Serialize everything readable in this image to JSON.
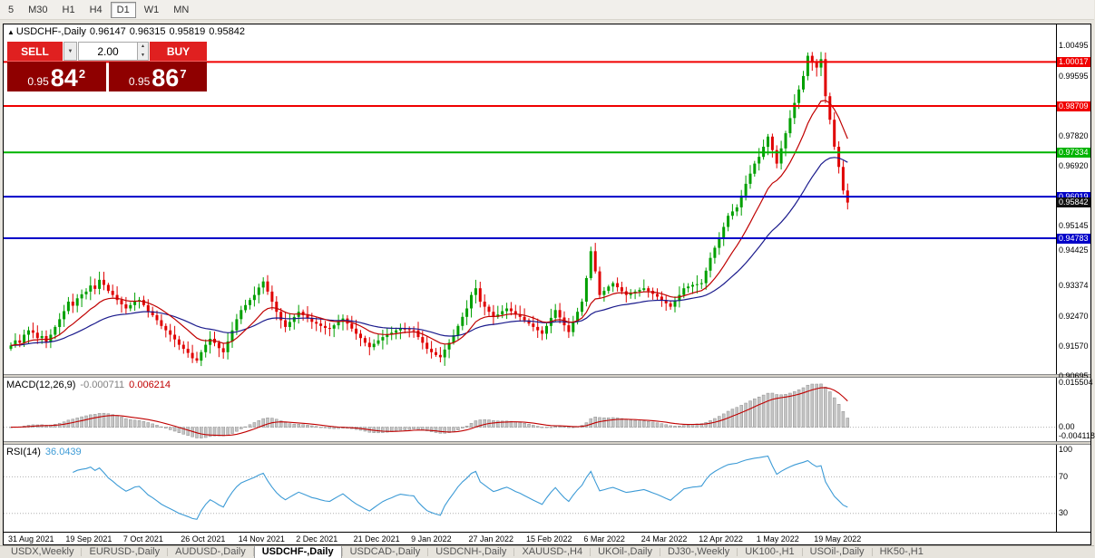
{
  "colors": {
    "candle_up": "#00a000",
    "candle_down": "#e00000",
    "ma_fast": "#c00000",
    "ma_slow": "#1a1a8c",
    "macd_hist_fill": "#c4c4c4",
    "macd_hist_edge": "#909090",
    "macd_signal": "#c00000",
    "rsi_line": "#3d9bd6",
    "panel_dotted": "#b0b0b0"
  },
  "toolbar": {
    "timeframes": [
      "5",
      "M30",
      "H1",
      "H4",
      "D1",
      "W1",
      "MN"
    ],
    "active": "D1"
  },
  "chart": {
    "title": {
      "arrow": "▲",
      "symbol": "USDCHF-,Daily",
      "open": "0.96147",
      "high": "0.96315",
      "low": "0.95819",
      "close": "0.95842"
    }
  },
  "trade_widget": {
    "sell_label": "SELL",
    "buy_label": "BUY",
    "volume": "2.00",
    "dropdown_icon": "▼",
    "spinner_up": "▲",
    "spinner_down": "▼",
    "sell_price": {
      "prefix": "0.95",
      "big": "84",
      "sup": "2"
    },
    "buy_price": {
      "prefix": "0.95",
      "big": "86",
      "sup": "7"
    }
  },
  "price_axis": {
    "labels": [
      {
        "text": "1.00495",
        "type": "plain"
      },
      {
        "text": "1.00017",
        "type": "red"
      },
      {
        "text": "0.99595",
        "type": "plain"
      },
      {
        "text": "0.98709",
        "type": "red"
      },
      {
        "text": "0.97820",
        "type": "plain"
      },
      {
        "text": "0.97334",
        "type": "green"
      },
      {
        "text": "0.96920",
        "type": "plain"
      },
      {
        "text": "0.96019",
        "type": "blue"
      },
      {
        "text": "0.95842",
        "type": "current"
      },
      {
        "text": "0.95145",
        "type": "plain"
      },
      {
        "text": "0.94783",
        "type": "blue"
      },
      {
        "text": "0.94425",
        "type": "plain"
      },
      {
        "text": "0.93374",
        "type": "plain"
      },
      {
        "text": "0.92470",
        "type": "plain"
      },
      {
        "text": "0.91570",
        "type": "plain"
      },
      {
        "text": "0.90695",
        "type": "plain"
      }
    ]
  },
  "hlines": [
    {
      "price": 1.00017,
      "color": "#f00000"
    },
    {
      "price": 0.98709,
      "color": "#f00000"
    },
    {
      "price": 0.97334,
      "color": "#00b300"
    },
    {
      "price": 0.96019,
      "color": "#0000c8"
    },
    {
      "price": 0.94783,
      "color": "#0000c8"
    }
  ],
  "macd_panel": {
    "name": "MACD(12,26,9)",
    "value_main": "-0.000711",
    "value_signal": "0.006214",
    "axis": [
      {
        "text": "0.015504",
        "v": 0.015504
      },
      {
        "text": "0.00",
        "v": 0
      },
      {
        "text": "-0.004118",
        "v": -0.004118
      }
    ]
  },
  "rsi_panel": {
    "name": "RSI(14)",
    "value": "36.0439",
    "axis": [
      {
        "text": "100",
        "v": 100
      },
      {
        "text": "70",
        "v": 70
      },
      {
        "text": "30",
        "v": 30
      }
    ],
    "levels": [
      70,
      30
    ]
  },
  "date_axis": [
    "31 Aug 2021",
    "19 Sep 2021",
    "7 Oct 2021",
    "26 Oct 2021",
    "14 Nov 2021",
    "2 Dec 2021",
    "21 Dec 2021",
    "9 Jan 2022",
    "27 Jan 2022",
    "15 Feb 2022",
    "6 Mar 2022",
    "24 Mar 2022",
    "12 Apr 2022",
    "1 May 2022",
    "19 May 2022"
  ],
  "tabs": {
    "items": [
      "USDX,Weekly",
      "EURUSD-,Daily",
      "AUDUSD-,Daily",
      "USDCHF-,Daily",
      "USDCAD-,Daily",
      "USDCNH-,Daily",
      "XAUUSD-,H4",
      "UKOil-,Daily",
      "DJ30-,Weekly",
      "UK100-,H1",
      "USOil-,Daily",
      "HK50-,H1"
    ],
    "active": "USDCHF-,Daily"
  },
  "chart_data": {
    "type": "candlestick",
    "symbol": "USDCHF-",
    "timeframe": "Daily",
    "ohlc_display": {
      "open": 0.96147,
      "high": 0.96315,
      "low": 0.95819,
      "close": 0.95842
    },
    "y_range": {
      "top": 1.0113,
      "bottom": 0.9075
    },
    "x_start": 8,
    "x_step": 4.88,
    "label_every": 13,
    "levels": [
      1.00017,
      0.98709,
      0.97334,
      0.96019,
      0.94783
    ],
    "closes": [
      0.916,
      0.9175,
      0.9168,
      0.9192,
      0.9205,
      0.9198,
      0.9182,
      0.9188,
      0.917,
      0.9192,
      0.9215,
      0.9238,
      0.9262,
      0.929,
      0.9278,
      0.93,
      0.9312,
      0.932,
      0.9338,
      0.9328,
      0.9355,
      0.934,
      0.9322,
      0.931,
      0.9295,
      0.9282,
      0.927,
      0.928,
      0.9292,
      0.9295,
      0.928,
      0.9262,
      0.925,
      0.9235,
      0.9218,
      0.9205,
      0.9192,
      0.9178,
      0.9162,
      0.915,
      0.9138,
      0.9122,
      0.9115,
      0.914,
      0.9162,
      0.918,
      0.9168,
      0.9152,
      0.914,
      0.9172,
      0.9205,
      0.9238,
      0.9265,
      0.928,
      0.9295,
      0.931,
      0.9332,
      0.935,
      0.932,
      0.929,
      0.926,
      0.9235,
      0.9215,
      0.923,
      0.9245,
      0.926,
      0.925,
      0.924,
      0.923,
      0.9225,
      0.9218,
      0.9212,
      0.921,
      0.922,
      0.923,
      0.924,
      0.9225,
      0.921,
      0.9195,
      0.9182,
      0.9168,
      0.9155,
      0.9165,
      0.9175,
      0.9185,
      0.9192,
      0.9198,
      0.9205,
      0.921,
      0.9208,
      0.9206,
      0.9205,
      0.9185,
      0.9168,
      0.915,
      0.914,
      0.9132,
      0.9125,
      0.9148,
      0.9168,
      0.919,
      0.9218,
      0.9245,
      0.927,
      0.931,
      0.933,
      0.929,
      0.9275,
      0.926,
      0.9245,
      0.9252,
      0.9262,
      0.927,
      0.9262,
      0.9252,
      0.9245,
      0.9235,
      0.9225,
      0.9215,
      0.9205,
      0.9195,
      0.9218,
      0.9242,
      0.9265,
      0.9243,
      0.922,
      0.92,
      0.923,
      0.926,
      0.929,
      0.936,
      0.944,
      0.938,
      0.931,
      0.9322,
      0.9335,
      0.9345,
      0.9333,
      0.9321,
      0.931,
      0.9315,
      0.932,
      0.9325,
      0.933,
      0.9322,
      0.9313,
      0.9305,
      0.9295,
      0.9285,
      0.9275,
      0.9292,
      0.931,
      0.933,
      0.9335,
      0.934,
      0.9342,
      0.9345,
      0.9382,
      0.942,
      0.945,
      0.948,
      0.9512,
      0.9545,
      0.9558,
      0.957,
      0.9605,
      0.964,
      0.967,
      0.97,
      0.972,
      0.975,
      0.978,
      0.974,
      0.97,
      0.9745,
      0.979,
      0.9835,
      0.988,
      0.992,
      0.996,
      1.002,
      1.0,
      0.9985,
      1.001,
      0.99,
      0.983,
      0.975,
      0.969,
      0.962,
      0.95842
    ],
    "indicators": {
      "ma_fast_period": 13,
      "ma_slow_period": 34,
      "macd": {
        "fast": 12,
        "slow": 26,
        "signal": 9,
        "scale_max": 0.016,
        "scale_min": -0.0045
      },
      "rsi": {
        "period": 14,
        "scale_top": 105,
        "scale_bottom": 10
      }
    }
  }
}
